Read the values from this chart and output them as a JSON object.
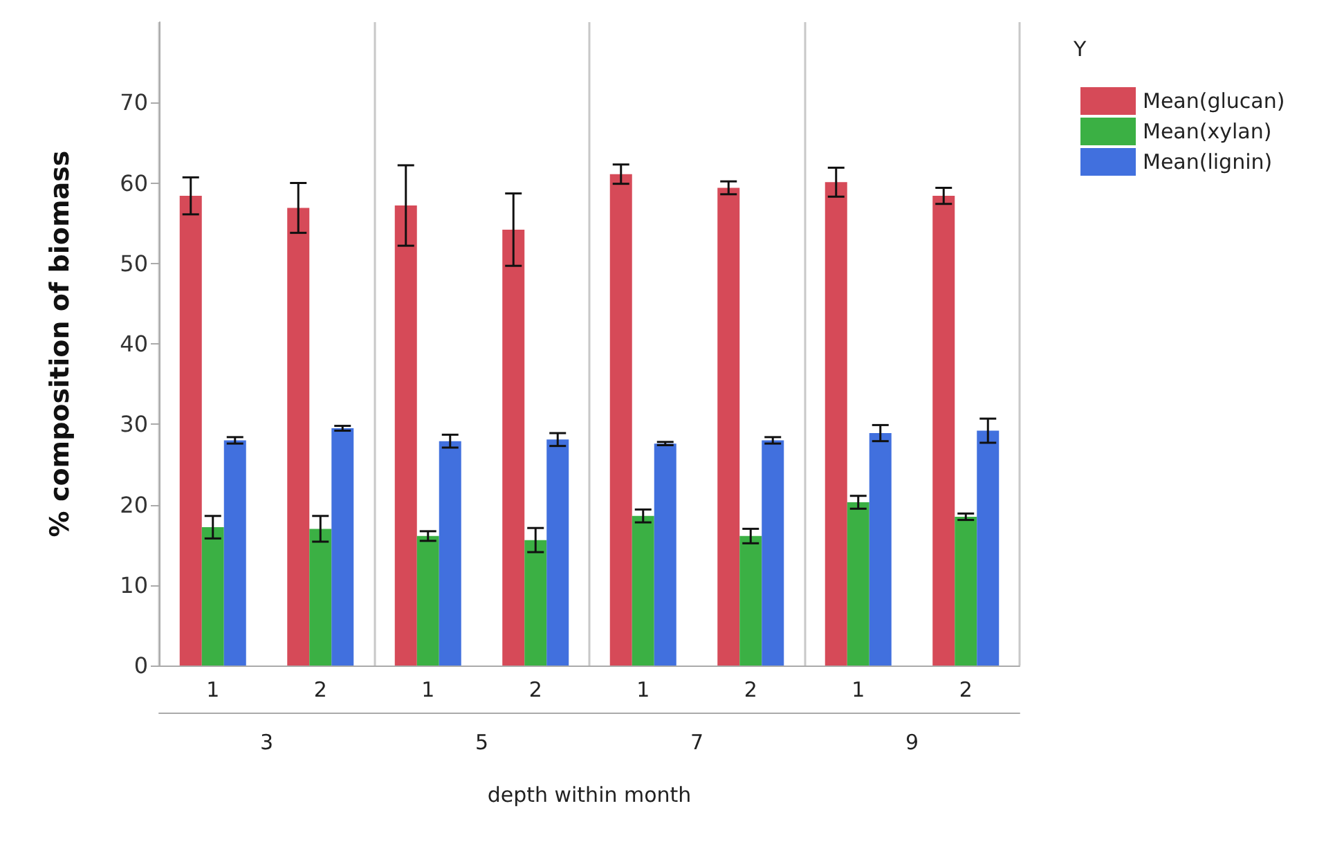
{
  "chart_data": {
    "type": "bar",
    "xlabel": "depth within month",
    "ylabel": "% composition of biomass",
    "legend_title": "Y",
    "categories": [
      "1",
      "2",
      "1",
      "2",
      "1",
      "2",
      "1",
      "2"
    ],
    "annotations": [
      "3",
      "5",
      "7",
      "9"
    ],
    "series": [
      {
        "name": "Mean(glucan)",
        "color": "#d64a58",
        "values": [
          58.4,
          56.9,
          57.2,
          54.2,
          61.1,
          59.4,
          60.1,
          58.4
        ],
        "errors": [
          2.3,
          3.1,
          5.0,
          4.5,
          1.2,
          0.8,
          1.8,
          1.0
        ]
      },
      {
        "name": "Mean(xylan)",
        "color": "#3bb044",
        "values": [
          17.2,
          17.0,
          16.1,
          15.6,
          18.6,
          16.1,
          20.3,
          18.5
        ],
        "errors": [
          1.4,
          1.6,
          0.6,
          1.5,
          0.8,
          0.9,
          0.8,
          0.4
        ]
      },
      {
        "name": "Mean(lignin)",
        "color": "#4170de",
        "values": [
          28.0,
          29.5,
          27.9,
          28.1,
          27.6,
          28.0,
          28.9,
          29.2
        ],
        "errors": [
          0.4,
          0.3,
          0.8,
          0.8,
          0.2,
          0.4,
          1.0,
          1.5
        ]
      }
    ],
    "ylim": [
      0,
      80
    ],
    "yticks": [
      0,
      10,
      20,
      30,
      40,
      50,
      60,
      70
    ],
    "legend": "top right"
  }
}
